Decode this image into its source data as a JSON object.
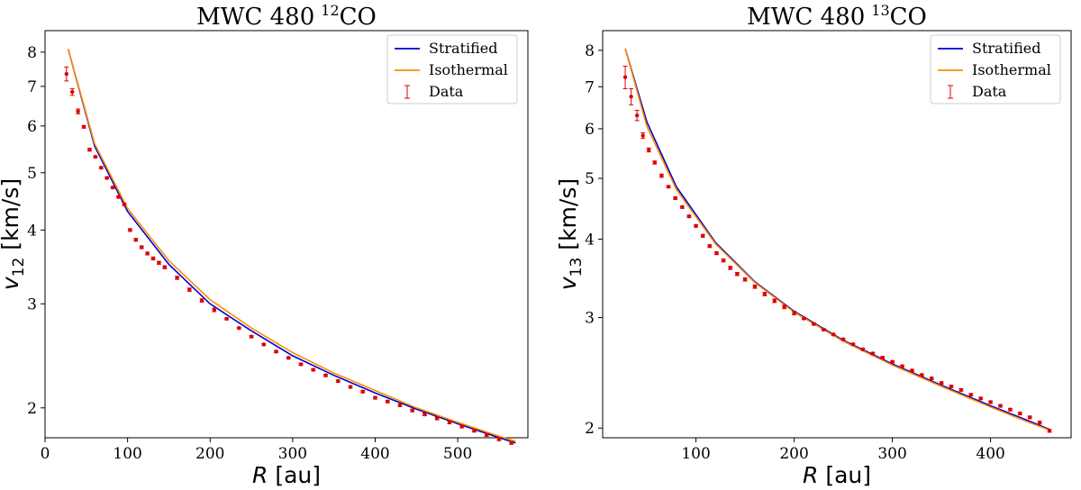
{
  "chart_data": [
    {
      "type": "line",
      "title": "MWC 480",
      "title_sup": "12",
      "title_suffix": "CO",
      "xlabel_var": "R",
      "xlabel_unit": "[au]",
      "ylabel_var": "v",
      "ylabel_sub": "12",
      "ylabel_unit": "[km/s]",
      "xlim": [
        0,
        585
      ],
      "ylim": [
        1.78,
        8.7
      ],
      "yscale": "log",
      "xticks": [
        0,
        100,
        200,
        300,
        400,
        500
      ],
      "xtick_labels": [
        "0",
        "100",
        "200",
        "300",
        "400",
        "500"
      ],
      "yticks": [
        2,
        3,
        4,
        5,
        6,
        7,
        8
      ],
      "ytick_labels": [
        "2",
        "3",
        "4",
        "5",
        "6",
        "7",
        "8"
      ],
      "legend_position": "top-right",
      "series": [
        {
          "name": "Stratified",
          "kind": "line",
          "color": "#0000cc",
          "x": [
            28,
            60,
            100,
            150,
            200,
            250,
            300,
            350,
            400,
            450,
            500,
            545,
            570
          ],
          "y": [
            8.1,
            5.55,
            4.3,
            3.5,
            3.0,
            2.7,
            2.45,
            2.27,
            2.12,
            1.99,
            1.88,
            1.79,
            1.745
          ]
        },
        {
          "name": "Isothermal",
          "kind": "line",
          "color": "#ff8c00",
          "x": [
            28,
            60,
            100,
            150,
            200,
            250,
            300,
            350,
            400,
            450,
            500,
            545,
            570
          ],
          "y": [
            8.1,
            5.6,
            4.35,
            3.55,
            3.05,
            2.73,
            2.48,
            2.29,
            2.14,
            2.0,
            1.89,
            1.8,
            1.755
          ]
        },
        {
          "name": "Data",
          "kind": "errorbar",
          "color": "#dd0000",
          "x": [
            26,
            33,
            40,
            47,
            54,
            61,
            68,
            75,
            82,
            89,
            96,
            103,
            110,
            117,
            124,
            131,
            138,
            145,
            160,
            175,
            190,
            205,
            220,
            235,
            250,
            265,
            280,
            295,
            310,
            325,
            340,
            355,
            370,
            385,
            400,
            415,
            430,
            445,
            460,
            475,
            490,
            505,
            520,
            535,
            550,
            565
          ],
          "y": [
            7.35,
            6.85,
            6.35,
            5.98,
            5.47,
            5.32,
            5.1,
            4.9,
            4.72,
            4.55,
            4.42,
            4.0,
            3.85,
            3.74,
            3.65,
            3.58,
            3.52,
            3.46,
            3.32,
            3.17,
            3.04,
            2.93,
            2.83,
            2.73,
            2.64,
            2.56,
            2.49,
            2.43,
            2.37,
            2.32,
            2.27,
            2.22,
            2.17,
            2.13,
            2.08,
            2.05,
            2.02,
            1.98,
            1.95,
            1.92,
            1.89,
            1.86,
            1.83,
            1.8,
            1.77,
            1.745
          ],
          "yerr": [
            0.2,
            0.09,
            0.06,
            0.03,
            0.03,
            0.02,
            0.02,
            0.02,
            0.02,
            0.02,
            0.02,
            0.02,
            0.02,
            0.02,
            0.02,
            0.02,
            0.02,
            0.02,
            0.02,
            0.02,
            0.02,
            0.02,
            0.01,
            0.01,
            0.01,
            0.01,
            0.01,
            0.01,
            0.01,
            0.01,
            0.01,
            0.01,
            0.01,
            0.01,
            0.01,
            0.01,
            0.01,
            0.01,
            0.01,
            0.01,
            0.01,
            0.01,
            0.01,
            0.01,
            0.01,
            0.01
          ]
        }
      ]
    },
    {
      "type": "line",
      "title": "MWC 480",
      "title_sup": "13",
      "title_suffix": "CO",
      "xlabel_var": "R",
      "xlabel_unit": "[au]",
      "ylabel_var": "v",
      "ylabel_sub": "13",
      "ylabel_unit": "[km/s]",
      "xlim": [
        5,
        482
      ],
      "ylim": [
        1.93,
        8.6
      ],
      "yscale": "log",
      "xticks": [
        100,
        200,
        300,
        400
      ],
      "xtick_labels": [
        "100",
        "200",
        "300",
        "400"
      ],
      "yticks": [
        2,
        3,
        4,
        5,
        6,
        7,
        8
      ],
      "ytick_labels": [
        "2",
        "3",
        "4",
        "5",
        "6",
        "7",
        "8"
      ],
      "legend_position": "top-right",
      "series": [
        {
          "name": "Stratified",
          "kind": "line",
          "color": "#0000cc",
          "x": [
            28,
            50,
            80,
            120,
            160,
            200,
            250,
            300,
            350,
            400,
            440,
            460
          ],
          "y": [
            8.05,
            6.15,
            4.85,
            3.95,
            3.42,
            3.07,
            2.76,
            2.53,
            2.34,
            2.17,
            2.05,
            1.99
          ]
        },
        {
          "name": "Isothermal",
          "kind": "line",
          "color": "#ff8c00",
          "x": [
            28,
            50,
            80,
            120,
            160,
            200,
            250,
            300,
            350,
            400,
            440,
            460
          ],
          "y": [
            8.05,
            6.05,
            4.8,
            3.93,
            3.41,
            3.06,
            2.75,
            2.52,
            2.33,
            2.16,
            2.04,
            1.985
          ]
        },
        {
          "name": "Data",
          "kind": "errorbar",
          "color": "#dd0000",
          "x": [
            28,
            34,
            40,
            46,
            52,
            58,
            65,
            72,
            79,
            86,
            93,
            100,
            107,
            114,
            121,
            128,
            135,
            142,
            150,
            160,
            170,
            180,
            190,
            200,
            210,
            220,
            230,
            240,
            250,
            260,
            270,
            280,
            290,
            300,
            310,
            320,
            330,
            340,
            350,
            360,
            370,
            380,
            390,
            400,
            410,
            420,
            430,
            440,
            450,
            460
          ],
          "y": [
            7.25,
            6.75,
            6.3,
            5.85,
            5.55,
            5.3,
            5.05,
            4.85,
            4.65,
            4.5,
            4.35,
            4.2,
            4.05,
            3.9,
            3.8,
            3.7,
            3.6,
            3.52,
            3.45,
            3.36,
            3.27,
            3.19,
            3.12,
            3.05,
            2.99,
            2.93,
            2.87,
            2.82,
            2.77,
            2.72,
            2.67,
            2.63,
            2.59,
            2.55,
            2.51,
            2.47,
            2.43,
            2.4,
            2.36,
            2.33,
            2.3,
            2.26,
            2.23,
            2.2,
            2.17,
            2.14,
            2.11,
            2.08,
            2.04,
            1.98
          ],
          "yerr": [
            0.3,
            0.2,
            0.12,
            0.06,
            0.04,
            0.03,
            0.03,
            0.02,
            0.02,
            0.02,
            0.02,
            0.02,
            0.02,
            0.02,
            0.02,
            0.02,
            0.02,
            0.02,
            0.02,
            0.02,
            0.02,
            0.02,
            0.02,
            0.02,
            0.01,
            0.01,
            0.01,
            0.01,
            0.01,
            0.01,
            0.01,
            0.01,
            0.01,
            0.01,
            0.01,
            0.01,
            0.01,
            0.01,
            0.01,
            0.01,
            0.01,
            0.01,
            0.01,
            0.01,
            0.01,
            0.01,
            0.01,
            0.01,
            0.01,
            0.01
          ]
        }
      ]
    }
  ]
}
